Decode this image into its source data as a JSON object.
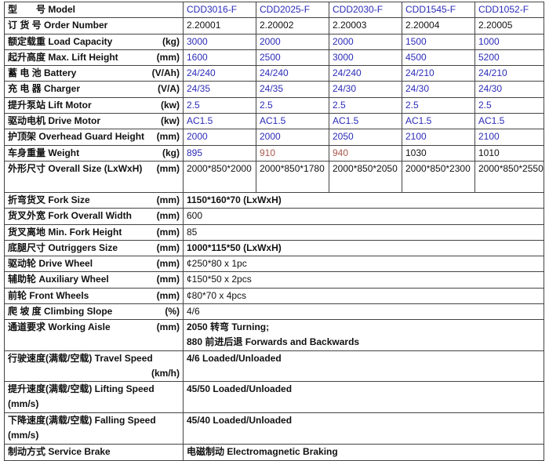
{
  "colors": {
    "blue": "#2b2bb8",
    "brown": "#a8584a",
    "black": "#111111"
  },
  "header": {
    "label": "型　　号 Model",
    "models": [
      "CDD3016-F",
      "CDD2025-F",
      "CDD2030-F",
      "CDD1545-F",
      "CDD1052-F"
    ],
    "color": "blue"
  },
  "model_rows": [
    {
      "label": "订 货 号 Order Number",
      "unit": "",
      "values": [
        "2.20001",
        "2.20002",
        "2.20003",
        "2.20004",
        "2.20005"
      ],
      "value_colors": [
        "black",
        "black",
        "black",
        "black",
        "black"
      ]
    },
    {
      "label": "额定载重 Load Capacity",
      "unit": "(kg)",
      "values": [
        "3000",
        "2000",
        "2000",
        "1500",
        "1000"
      ],
      "value_colors": [
        "blue",
        "blue",
        "blue",
        "blue",
        "blue"
      ]
    },
    {
      "label": "起升高度 Max. Lift Height",
      "unit": "(mm)",
      "values": [
        "1600",
        "2500",
        "3000",
        "4500",
        "5200"
      ],
      "value_colors": [
        "blue",
        "blue",
        "blue",
        "blue",
        "blue"
      ]
    },
    {
      "label": "蓄 电 池 Battery",
      "unit": "(V/Ah)",
      "values": [
        "24/240",
        "24/240",
        "24/240",
        "24/210",
        "24/210"
      ],
      "value_colors": [
        "blue",
        "blue",
        "blue",
        "blue",
        "blue"
      ]
    },
    {
      "label": "充 电 器 Charger",
      "unit": "(V/A)",
      "values": [
        "24/35",
        "24/35",
        "24/30",
        "24/30",
        "24/30"
      ],
      "value_colors": [
        "blue",
        "blue",
        "blue",
        "blue",
        "blue"
      ]
    },
    {
      "label": "提升泵站 Lift Motor",
      "unit": "(kw)",
      "values": [
        "2.5",
        "2.5",
        "2.5",
        "2.5",
        "2.5"
      ],
      "value_colors": [
        "blue",
        "blue",
        "blue",
        "blue",
        "blue"
      ]
    },
    {
      "label": "驱动电机 Drive Motor",
      "unit": "(kw)",
      "values": [
        "AC1.5",
        "AC1.5",
        "AC1.5",
        "AC1.5",
        "AC1.5"
      ],
      "value_colors": [
        "blue",
        "blue",
        "blue",
        "blue",
        "blue"
      ]
    },
    {
      "label": "护顶架 Overhead Guard Height",
      "unit": "(mm)",
      "values": [
        "2000",
        "2000",
        "2050",
        "2100",
        "2100"
      ],
      "value_colors": [
        "blue",
        "blue",
        "blue",
        "blue",
        "blue"
      ]
    },
    {
      "label": "车身重量 Weight",
      "unit": "(kg)",
      "values": [
        "895",
        "910",
        "940",
        "1030",
        "1010"
      ],
      "value_colors": [
        "blue",
        "brown",
        "brown",
        "black",
        "black"
      ]
    },
    {
      "label": "外形尺寸 Overall Size (LxWxH)",
      "unit": "(mm)",
      "values": [
        "2000*850*2000",
        "2000*850*1780",
        "2000*850*2050",
        "2000*850*2300",
        "2000*850*2550"
      ],
      "value_colors": [
        "black",
        "black",
        "black",
        "black",
        "black"
      ]
    }
  ],
  "common_rows": [
    {
      "label": "折弯货叉 Fork Size",
      "unit": "(mm)",
      "lines": [
        "1150*160*70 (LxWxH)"
      ]
    },
    {
      "label": "货叉外宽 Fork Overall Width",
      "unit": "(mm)",
      "lines": [
        "600"
      ]
    },
    {
      "label": "货叉离地 Min. Fork Height",
      "unit": "(mm)",
      "lines": [
        "85"
      ]
    },
    {
      "label": "底腿尺寸 Outriggers Size",
      "unit": "(mm)",
      "lines": [
        "1000*115*50 (LxWxH)"
      ]
    },
    {
      "label": "驱动轮 Drive Wheel",
      "unit": "(mm)",
      "lines": [
        "¢250*80 x 1pc"
      ]
    },
    {
      "label": "辅助轮 Auxiliary Wheel",
      "unit": "(mm)",
      "lines": [
        "¢150*50 x 2pcs"
      ]
    },
    {
      "label": "前轮 Front Wheels",
      "unit": "(mm)",
      "lines": [
        "¢80*70 x 4pcs"
      ]
    },
    {
      "label": "爬 坡 度 Climbing Slope",
      "unit": "(%)",
      "lines": [
        "4/6"
      ]
    },
    {
      "label": "通道要求 Working Aisle",
      "unit": "(mm)",
      "lines": [
        "2050 转弯 Turning;",
        "880 前进后退 Forwards and Backwards"
      ]
    },
    {
      "label": "行驶速度(满载/空载) Travel Speed",
      "unit": "(km/h)",
      "lines": [
        "4/6 Loaded/Unloaded"
      ]
    },
    {
      "label": "提升速度(满载/空载)   Lifting Speed",
      "unit": "(mm/s)",
      "lines": [
        "45/50 Loaded/Unloaded"
      ]
    },
    {
      "label": "下降速度(满载/空载) Falling Speed",
      "unit": "(mm/s)",
      "lines": [
        "45/40 Loaded/Unloaded"
      ]
    },
    {
      "label": "制动方式 Service Brake",
      "unit": "",
      "lines": [
        "电磁制动 Electromagnetic Braking"
      ]
    }
  ]
}
